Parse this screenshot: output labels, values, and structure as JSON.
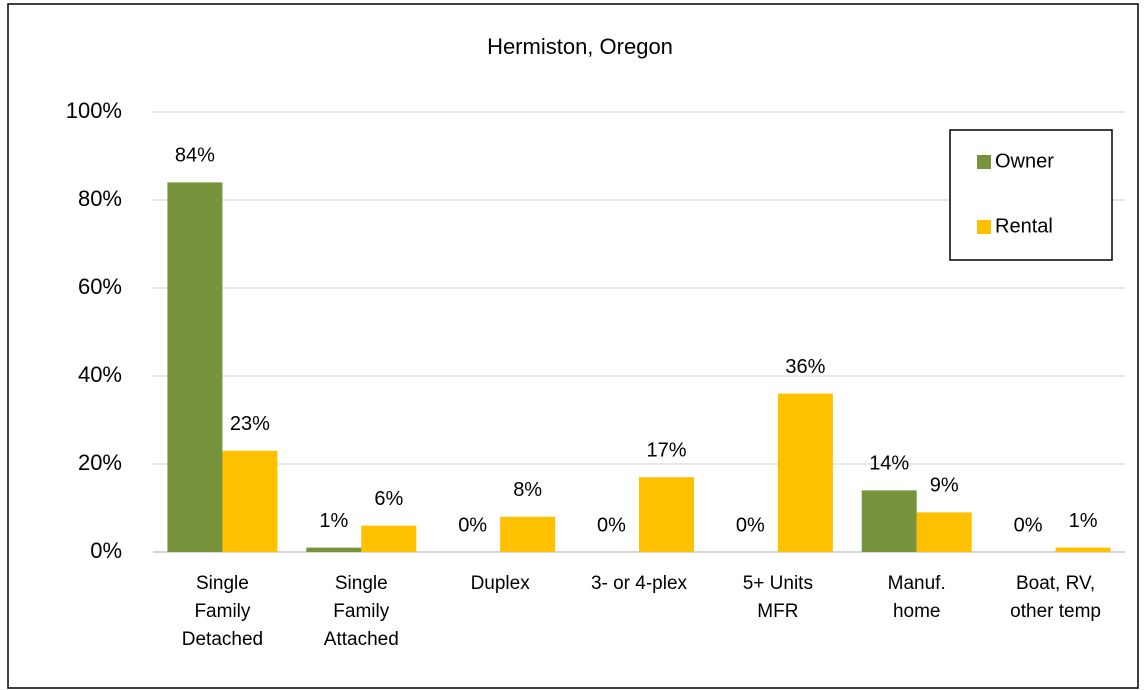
{
  "chart_data": {
    "type": "bar",
    "title": "Hermiston, Oregon",
    "categories": [
      "Single\nFamily\nDetached",
      "Single\nFamily\nAttached",
      "Duplex",
      "3- or 4-plex",
      "5+ Units\nMFR",
      "Manuf.\nhome",
      "Boat, RV,\nother temp"
    ],
    "series": [
      {
        "name": "Owner",
        "color": "#77933c",
        "values": [
          84,
          1,
          0,
          0,
          0,
          14,
          0
        ],
        "value_labels": [
          "84%",
          "1%",
          "0%",
          "0%",
          "0%",
          "14%",
          "0%"
        ]
      },
      {
        "name": "Rental",
        "color": "#ffc000",
        "values": [
          23,
          6,
          8,
          17,
          36,
          9,
          1
        ],
        "value_labels": [
          "23%",
          "6%",
          "8%",
          "17%",
          "36%",
          "9%",
          "1%"
        ]
      }
    ],
    "ylim": [
      0,
      100
    ],
    "yticks": [
      {
        "value": 0,
        "label": "0%"
      },
      {
        "value": 20,
        "label": "20%"
      },
      {
        "value": 40,
        "label": "40%"
      },
      {
        "value": 60,
        "label": "60%"
      },
      {
        "value": 80,
        "label": "80%"
      },
      {
        "value": 100,
        "label": "100%"
      }
    ],
    "grid": true,
    "legend": "upper right"
  }
}
